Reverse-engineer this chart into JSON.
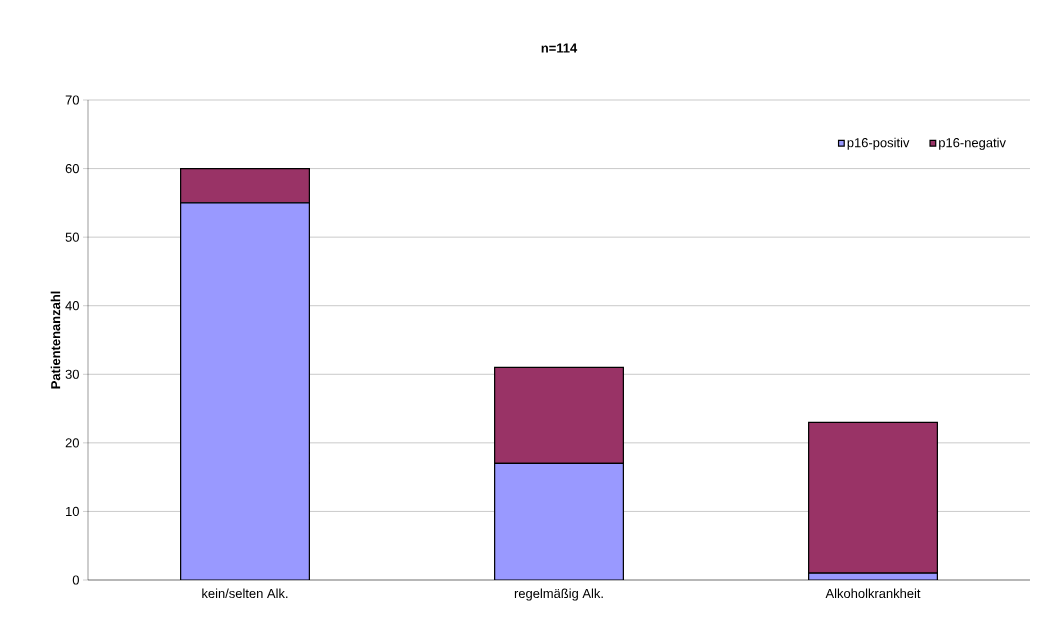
{
  "chart_data": {
    "type": "bar",
    "title": "n=114",
    "ylabel": "Patientenanzahl",
    "stacked": true,
    "categories": [
      "kein/selten Alk.",
      "regelmäßig Alk.",
      "Alkoholkrankheit"
    ],
    "series": [
      {
        "name": "p16-positiv",
        "color": "#9999ff",
        "values": [
          55,
          17,
          1
        ]
      },
      {
        "name": "p16-negativ",
        "color": "#993366",
        "values": [
          5,
          14,
          22
        ]
      }
    ],
    "ylim": [
      0,
      70
    ],
    "yticks": [
      0,
      10,
      20,
      30,
      40,
      50,
      60,
      70
    ],
    "grid": "y",
    "legend": "top right"
  }
}
